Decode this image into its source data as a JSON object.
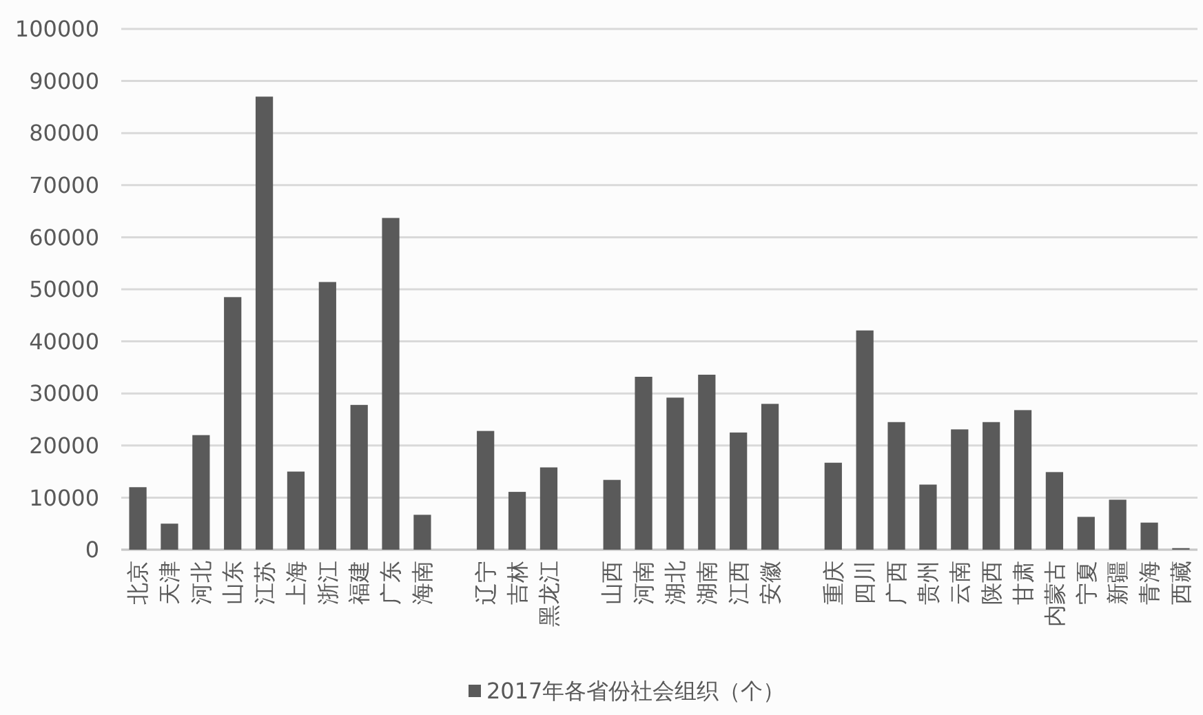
{
  "chart_data": {
    "type": "bar",
    "categories": [
      "北京",
      "天津",
      "河北",
      "山东",
      "江苏",
      "上海",
      "浙江",
      "福建",
      "广东",
      "海南",
      null,
      "辽宁",
      "吉林",
      "黑龙江",
      null,
      "山西",
      "河南",
      "湖北",
      "湖南",
      "江西",
      "安徽",
      null,
      "重庆",
      "四川",
      "广西",
      "贵州",
      "云南",
      "陕西",
      "甘肃",
      "内蒙古",
      "宁夏",
      "新疆",
      "青海",
      "西藏"
    ],
    "series": [
      {
        "name": "2017年各省份社会组织（个）",
        "color": "#5a5a5a",
        "values": [
          12000,
          5000,
          22000,
          48500,
          87000,
          15000,
          51400,
          27800,
          63700,
          6700,
          null,
          22800,
          11100,
          15800,
          null,
          13400,
          33200,
          29200,
          33600,
          22500,
          28000,
          null,
          16700,
          42100,
          24500,
          12500,
          23100,
          24500,
          26800,
          14900,
          6300,
          9600,
          5200,
          300
        ]
      }
    ],
    "ylim": [
      0,
      100000
    ],
    "yticks": [
      0,
      10000,
      20000,
      30000,
      40000,
      50000,
      60000,
      70000,
      80000,
      90000,
      100000
    ],
    "grid": "y",
    "legend": "bottom"
  }
}
